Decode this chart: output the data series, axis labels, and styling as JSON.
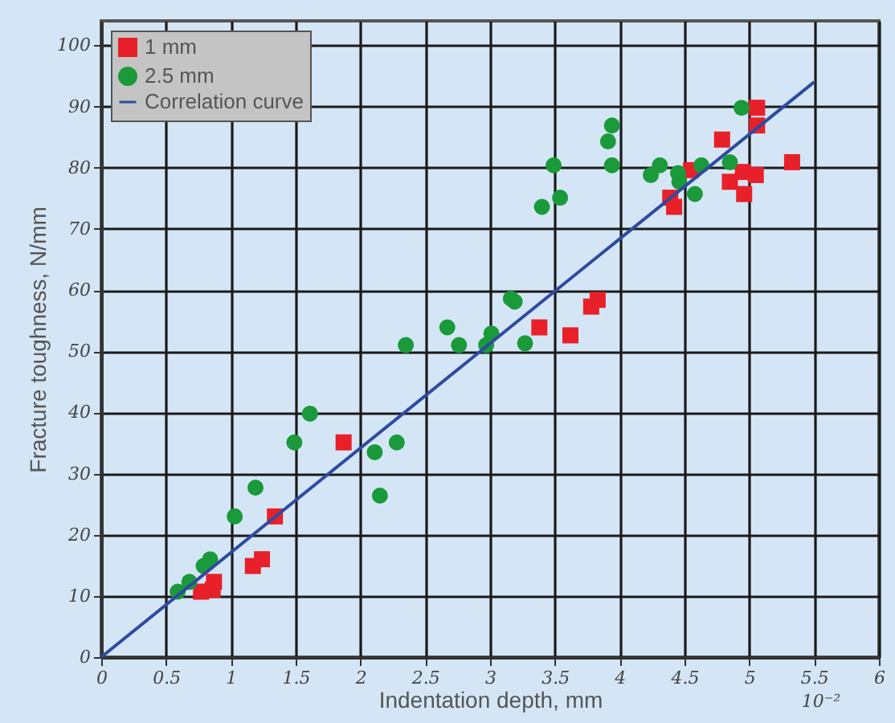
{
  "chart_data": {
    "type": "scatter",
    "xlabel": "Indentation depth, mm",
    "ylabel": "Fracture toughness, N/mm",
    "annotations": [
      "10⁻²"
    ],
    "xlim": [
      0,
      6
    ],
    "ylim": [
      0,
      104
    ],
    "xticks": [
      0,
      0.5,
      1,
      1.5,
      2,
      2.5,
      3,
      3.5,
      4,
      4.5,
      5,
      5.5,
      6
    ],
    "yticks": [
      0,
      10,
      20,
      30,
      40,
      50,
      60,
      70,
      80,
      90,
      100
    ],
    "grid": true,
    "legend": "top left",
    "series": [
      {
        "name": "1 mm",
        "marker": "square",
        "color": "#e8202a",
        "x": [
          0.77,
          0.86,
          0.87,
          1.17,
          1.24,
          1.34,
          1.87,
          3.38,
          3.62,
          3.78,
          3.83,
          4.39,
          4.42,
          4.55,
          4.79,
          4.85,
          4.95,
          4.96,
          5.05,
          5.06,
          5.06,
          5.33
        ],
        "values": [
          10.7,
          11,
          12.3,
          14.9,
          16,
          23,
          35.1,
          53.9,
          52.6,
          57.3,
          58.4,
          75.1,
          73.6,
          79.6,
          84.6,
          77.7,
          79.3,
          75.7,
          78.8,
          89.8,
          86.9,
          80.9
        ]
      },
      {
        "name": "2.5 mm",
        "marker": "circle",
        "color": "#1a9a3a",
        "x": [
          0.59,
          0.68,
          0.79,
          0.84,
          1.03,
          1.19,
          1.49,
          1.61,
          2.11,
          2.28,
          2.15,
          2.35,
          2.67,
          2.76,
          2.97,
          3.01,
          3.27,
          3.16,
          3.19,
          3.4,
          3.54,
          3.49,
          3.94,
          3.91,
          3.94,
          4.24,
          4.31,
          4.45,
          4.46,
          4.63,
          4.58,
          4.85,
          4.94
        ],
        "values": [
          10.7,
          12.3,
          14.9,
          16,
          23,
          27.7,
          35.1,
          39.8,
          33.5,
          35.1,
          26.4,
          51,
          53.9,
          51,
          51,
          52.9,
          51.3,
          58.6,
          58.1,
          73.6,
          75.1,
          80.4,
          86.9,
          84.3,
          80.4,
          78.8,
          80.4,
          79.1,
          77.7,
          80.4,
          75.7,
          80.9,
          89.8
        ]
      },
      {
        "name": "Correlation curve",
        "type": "line",
        "marker": "none",
        "line_style": "solid",
        "color": "#2e4aa0",
        "x": [
          0,
          5.5
        ],
        "values": [
          0,
          94
        ]
      }
    ]
  }
}
